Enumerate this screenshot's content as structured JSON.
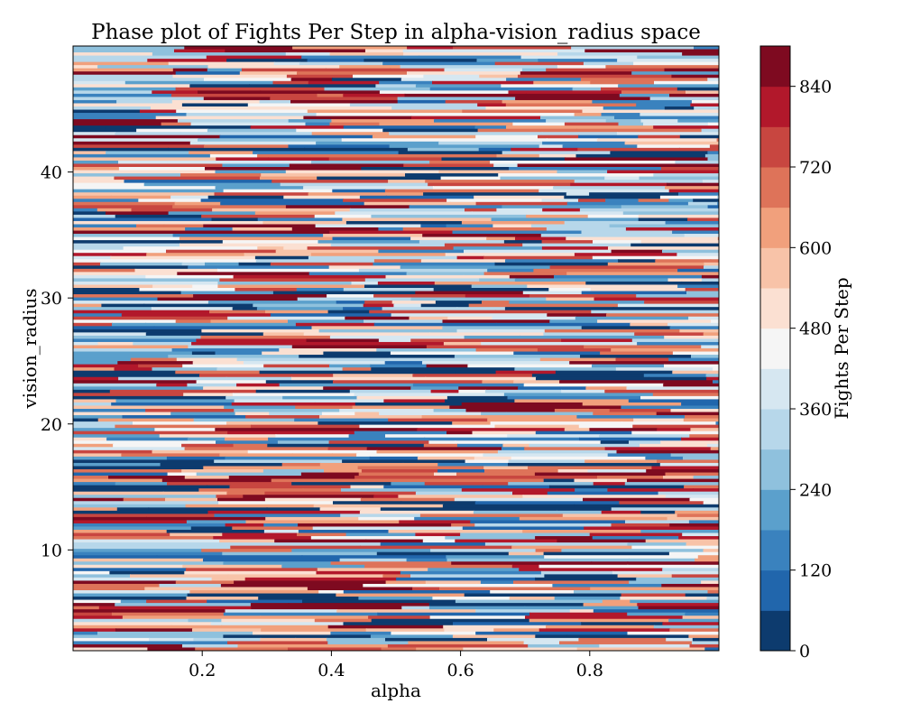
{
  "chart_data": {
    "type": "heatmap",
    "title": "Phase plot of Fights Per Step in alpha-vision_radius space",
    "xlabel": "alpha",
    "ylabel": "vision_radius",
    "xlim": [
      0.0,
      1.0
    ],
    "ylim": [
      2,
      50
    ],
    "x_ticks": [
      0.2,
      0.4,
      0.6,
      0.8
    ],
    "x_tick_labels": [
      "0.2",
      "0.4",
      "0.6",
      "0.8"
    ],
    "y_ticks": [
      10,
      20,
      30,
      40
    ],
    "y_tick_labels": [
      "10",
      "20",
      "30",
      "40"
    ],
    "colorbar": {
      "label": "Fights Per Step",
      "range": [
        0,
        900
      ],
      "levels": [
        0,
        60,
        120,
        180,
        240,
        300,
        360,
        420,
        480,
        540,
        600,
        660,
        720,
        780,
        840,
        900
      ],
      "ticks": [
        0,
        120,
        240,
        360,
        480,
        600,
        720,
        840
      ],
      "tick_labels": [
        "0",
        "120",
        "240",
        "360",
        "480",
        "600",
        "720",
        "840"
      ],
      "colormap": "RdBu_r",
      "colors": [
        "#0d3b6e",
        "#2166ac",
        "#3a82be",
        "#5ba0cc",
        "#8fc1dd",
        "#b7d7ea",
        "#d6e7f1",
        "#f5f5f5",
        "#fbe0d2",
        "#f8c3a8",
        "#f1a07c",
        "#de7359",
        "#c84640",
        "#b2182b",
        "#7e0a20"
      ]
    }
  }
}
